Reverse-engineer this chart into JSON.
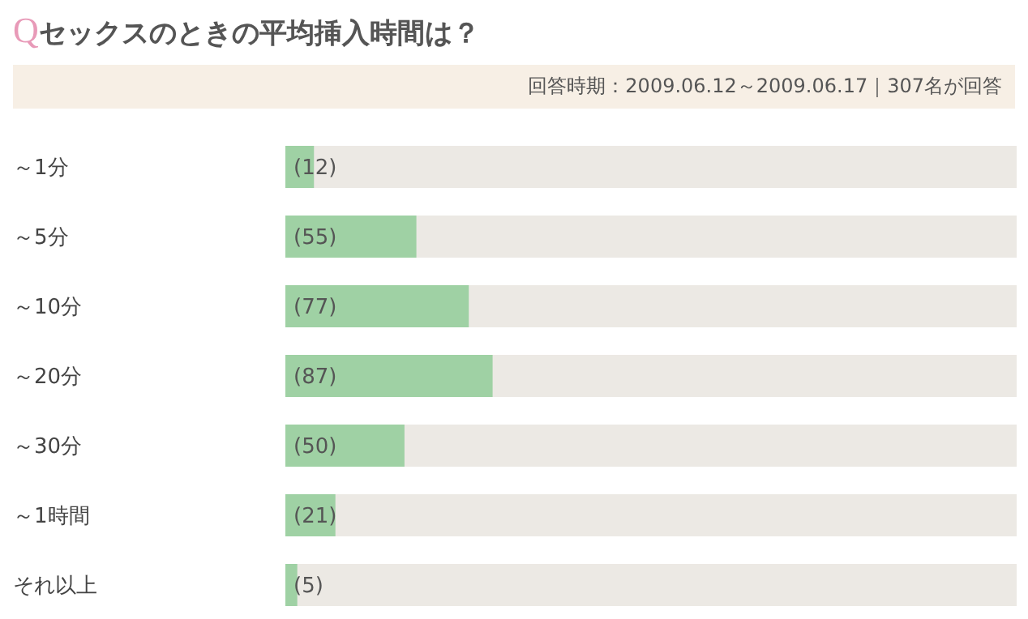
{
  "chart_data": {
    "type": "bar",
    "orientation": "horizontal",
    "title": "Qセックスのときの平均挿入時間は？",
    "subtitle": "回答時期：2009.06.12～2009.06.17｜307名が回答",
    "categories": [
      "～1分",
      "～5分",
      "～10分",
      "～20分",
      "～30分",
      "～1時間",
      "それ以上"
    ],
    "values": [
      12,
      55,
      77,
      87,
      50,
      21,
      5
    ],
    "value_labels": [
      "(12)",
      "(55)",
      "(77)",
      "(87)",
      "(50)",
      "(21)",
      "(5)"
    ],
    "color": "#9fd1a4",
    "xlim": [
      0,
      307
    ],
    "tick_labels": "y"
  }
}
